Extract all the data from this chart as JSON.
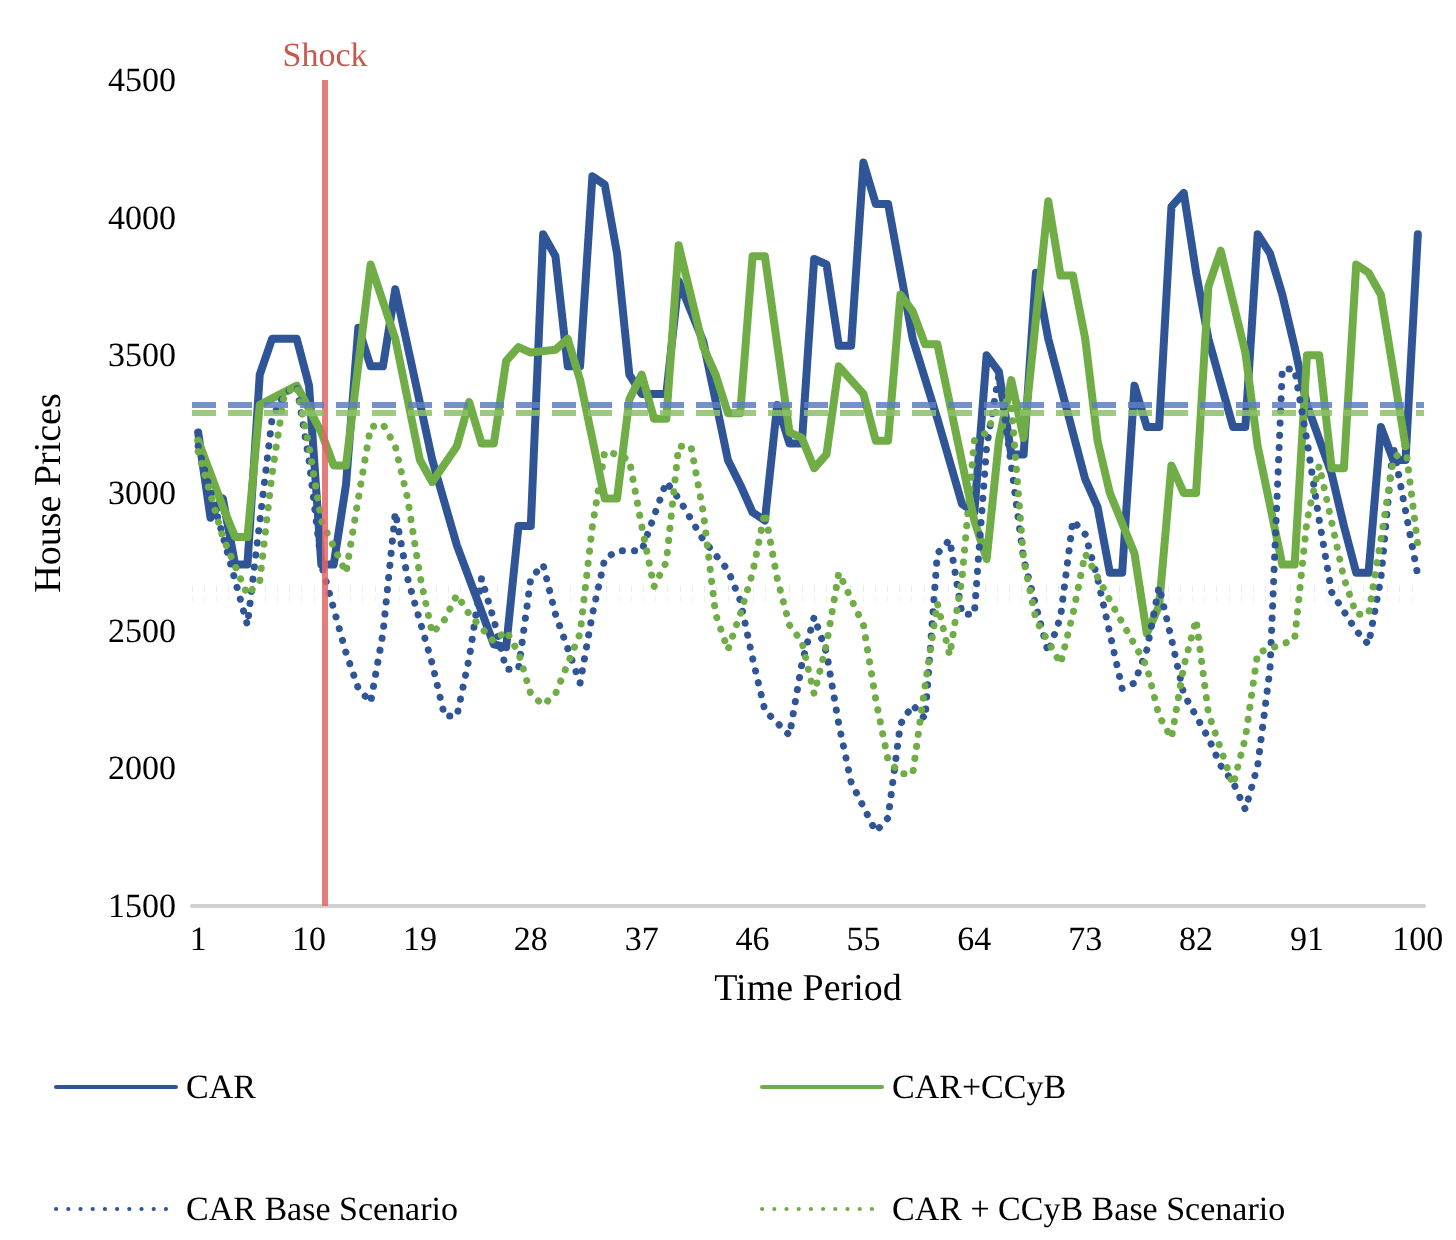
{
  "chart_data": {
    "type": "line",
    "xlabel": "Time Period",
    "ylabel": "House Prices",
    "xlim": [
      0.5,
      100.5
    ],
    "xticks": [
      1,
      10,
      19,
      28,
      37,
      46,
      55,
      64,
      73,
      82,
      91,
      100
    ],
    "ylim": [
      1500,
      4500
    ],
    "yticks": [
      1500,
      2000,
      2500,
      3000,
      3500,
      4000,
      4500
    ],
    "grid": false,
    "legend": "bottom",
    "marker": "none",
    "series": [
      {
        "name": "CAR",
        "color": "#2f5597",
        "line_style": "solid",
        "x": [
          1,
          2,
          3,
          4,
          5,
          6,
          7,
          9,
          10,
          11,
          12,
          13,
          14,
          15,
          16,
          17,
          20,
          22,
          25,
          26,
          27,
          28,
          29,
          30,
          31,
          32,
          33,
          34,
          35,
          36,
          37,
          39,
          40,
          42,
          44,
          45,
          46,
          47,
          48,
          49,
          50,
          51,
          52,
          53,
          54,
          55,
          56,
          57,
          59,
          61,
          63,
          64,
          65,
          66,
          67,
          68,
          69,
          70,
          72,
          73,
          74,
          75,
          76,
          77,
          78,
          79,
          80,
          81,
          82,
          83,
          85,
          86,
          87,
          88,
          89,
          90,
          91,
          93,
          94,
          95,
          96,
          97,
          98,
          99,
          100
        ],
        "values": [
          3220,
          2910,
          2980,
          2740,
          2740,
          3430,
          3560,
          3560,
          3390,
          2740,
          2740,
          3030,
          3600,
          3460,
          3460,
          3740,
          3120,
          2810,
          2450,
          2440,
          2880,
          2880,
          3940,
          3860,
          3460,
          3460,
          4150,
          4120,
          3870,
          3430,
          3360,
          3360,
          3770,
          3550,
          3120,
          3030,
          2930,
          2900,
          3320,
          3180,
          3180,
          3850,
          3830,
          3535,
          3535,
          4200,
          4050,
          4050,
          3560,
          3270,
          2960,
          2930,
          3500,
          3440,
          3140,
          3140,
          3800,
          3560,
          3220,
          3050,
          2950,
          2710,
          2710,
          3390,
          3240,
          3240,
          4040,
          4090,
          3800,
          3560,
          3240,
          3240,
          3940,
          3870,
          3720,
          3530,
          3320,
          3070,
          2880,
          2710,
          2710,
          3240,
          3120,
          3120,
          3940
        ]
      },
      {
        "name": "CAR+CCyB",
        "color": "#70ad47",
        "line_style": "solid",
        "x": [
          1,
          3,
          4,
          5,
          6,
          9,
          11,
          12,
          13,
          15,
          17,
          19,
          20,
          22,
          23,
          24,
          25,
          26,
          27,
          28,
          30,
          31,
          32,
          34,
          35,
          36,
          37,
          38,
          39,
          40,
          42,
          43,
          44,
          45,
          46,
          47,
          49,
          50,
          51,
          52,
          53,
          55,
          56,
          57,
          58,
          59,
          60,
          61,
          64,
          65,
          66,
          67,
          68,
          70,
          71,
          72,
          73,
          74,
          75,
          77,
          78,
          79,
          80,
          81,
          82,
          83,
          84,
          86,
          87,
          89,
          90,
          91,
          92,
          93,
          94,
          95,
          96,
          97,
          99
        ],
        "values": [
          3190,
          2950,
          2840,
          2840,
          3320,
          3390,
          3220,
          3100,
          3100,
          3830,
          3560,
          3120,
          3040,
          3170,
          3330,
          3180,
          3180,
          3480,
          3530,
          3510,
          3520,
          3560,
          3410,
          2980,
          2980,
          3340,
          3430,
          3270,
          3270,
          3900,
          3530,
          3430,
          3290,
          3290,
          3860,
          3860,
          3220,
          3200,
          3090,
          3140,
          3460,
          3360,
          3190,
          3190,
          3720,
          3660,
          3540,
          3540,
          2900,
          2760,
          3190,
          3410,
          3200,
          4060,
          3790,
          3790,
          3560,
          3190,
          3000,
          2780,
          2490,
          2590,
          3100,
          3000,
          3000,
          3750,
          3880,
          3510,
          3170,
          2740,
          2740,
          3500,
          3500,
          3090,
          3090,
          3830,
          3800,
          3720,
          3170
        ]
      },
      {
        "name": "CAR Base Scenario",
        "color": "#2f5597",
        "line_style": "dotted",
        "x": [
          1,
          5,
          7,
          8,
          9,
          10,
          11,
          13,
          14,
          15,
          16,
          17,
          18,
          20,
          21,
          22,
          23,
          24,
          25,
          26,
          27,
          28,
          29,
          30,
          32,
          33,
          34,
          35,
          37,
          39,
          40,
          42,
          44,
          45,
          46,
          47,
          49,
          50,
          51,
          52,
          53,
          54,
          56,
          57,
          58,
          59,
          60,
          61,
          62,
          63,
          64,
          65,
          66,
          67,
          68,
          70,
          71,
          72,
          73,
          74,
          76,
          77,
          78,
          79,
          80,
          81,
          83,
          84,
          85,
          86,
          87,
          88,
          89,
          90,
          91,
          92,
          93,
          95,
          96,
          97,
          98,
          100
        ],
        "values": [
          3170,
          2520,
          3270,
          3360,
          3390,
          3120,
          2740,
          2420,
          2290,
          2240,
          2490,
          2930,
          2690,
          2380,
          2190,
          2190,
          2400,
          2690,
          2540,
          2360,
          2360,
          2690,
          2740,
          2560,
          2310,
          2560,
          2760,
          2790,
          2790,
          3040,
          2980,
          2830,
          2720,
          2610,
          2400,
          2210,
          2120,
          2380,
          2550,
          2420,
          2160,
          1950,
          1770,
          1820,
          2160,
          2230,
          2180,
          2780,
          2830,
          2560,
          2560,
          3170,
          3430,
          3100,
          2760,
          2420,
          2550,
          2900,
          2850,
          2690,
          2290,
          2310,
          2430,
          2660,
          2470,
          2270,
          2110,
          2010,
          1950,
          1850,
          2010,
          2360,
          3450,
          3450,
          3190,
          2900,
          2640,
          2500,
          2450,
          2690,
          3170,
          2700
        ]
      },
      {
        "name": "CAR + CCyB Base Scenario",
        "color": "#70ad47",
        "line_style": "dotted",
        "x": [
          1,
          3,
          5,
          6,
          7,
          8,
          9,
          10,
          11,
          13,
          14,
          15,
          16,
          17,
          18,
          19,
          20,
          21,
          22,
          23,
          25,
          26,
          27,
          28,
          29,
          30,
          32,
          33,
          34,
          35,
          36,
          37,
          38,
          39,
          40,
          41,
          42,
          43,
          44,
          45,
          46,
          47,
          48,
          49,
          50,
          51,
          52,
          53,
          55,
          56,
          57,
          58,
          59,
          60,
          61,
          62,
          63,
          64,
          65,
          66,
          67,
          68,
          69,
          71,
          72,
          73,
          75,
          76,
          78,
          79,
          80,
          81,
          82,
          83,
          84,
          85,
          86,
          87,
          89,
          90,
          91,
          92,
          94,
          95,
          96,
          97,
          98,
          99,
          100
        ],
        "values": [
          3150,
          2840,
          2630,
          2680,
          3070,
          3360,
          3390,
          3170,
          2900,
          2710,
          2980,
          3240,
          3250,
          3170,
          2980,
          2700,
          2490,
          2540,
          2630,
          2560,
          2460,
          2500,
          2420,
          2270,
          2230,
          2270,
          2490,
          2880,
          3150,
          3140,
          3120,
          2880,
          2660,
          2750,
          3170,
          3170,
          2930,
          2560,
          2430,
          2560,
          2710,
          2930,
          2690,
          2520,
          2460,
          2270,
          2450,
          2710,
          2520,
          2250,
          2030,
          1980,
          1980,
          2300,
          2600,
          2410,
          2690,
          3190,
          3220,
          3320,
          3320,
          2760,
          2540,
          2380,
          2560,
          2780,
          2610,
          2530,
          2370,
          2190,
          2110,
          2370,
          2540,
          2200,
          2070,
          1940,
          2110,
          2420,
          2450,
          2470,
          2900,
          3100,
          2690,
          2560,
          2560,
          2830,
          3120,
          3170,
          2810
        ]
      }
    ],
    "ref_lines": [
      {
        "axis": "x",
        "value": 11.3,
        "label": "Shock",
        "color": "#e06666",
        "line_style": "solid"
      },
      {
        "axis": "y",
        "value": 3320,
        "color": "#5b7fbf",
        "line_style": "dashed"
      },
      {
        "axis": "y",
        "value": 3290,
        "color": "#8cc06a",
        "line_style": "dashed"
      },
      {
        "axis": "y",
        "value": 2650,
        "color": "#5b7fbf",
        "line_style": "dotted"
      },
      {
        "axis": "y",
        "value": 2620,
        "color": "#8cc06a",
        "line_style": "dotted"
      }
    ]
  }
}
